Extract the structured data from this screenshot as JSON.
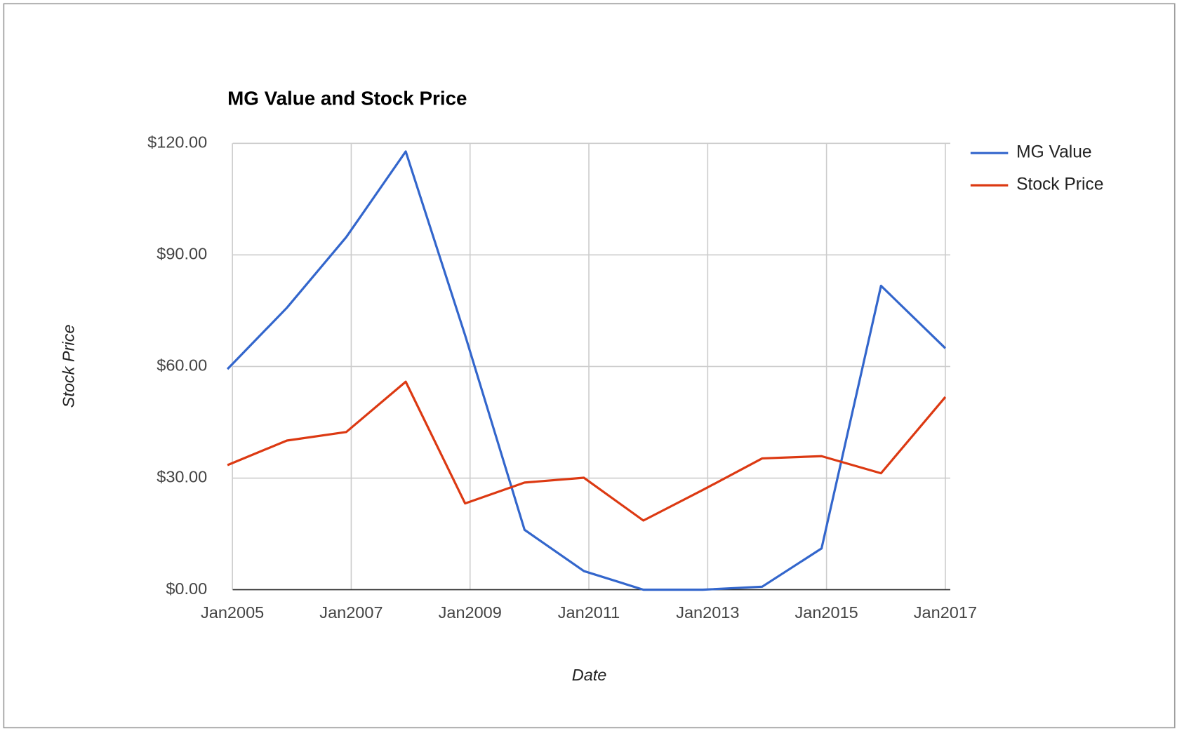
{
  "chart_data": {
    "type": "line",
    "title": "MG Value and Stock Price",
    "x_label": "Date",
    "y_label": "Stock Price",
    "x": [
      "2004-12",
      "2005-12",
      "2006-12",
      "2007-12",
      "2008-12",
      "2009-12",
      "2010-12",
      "2011-12",
      "2012-12",
      "2013-12",
      "2014-12",
      "2015-12",
      "2017-01"
    ],
    "series": [
      {
        "name": "MG Value",
        "color": "#3366cc",
        "values": [
          59.3,
          75.8,
          94.8,
          117.8,
          68.4,
          16.1,
          5.0,
          0,
          0,
          0.8,
          11.1,
          81.7,
          64.9
        ]
      },
      {
        "name": "Stock Price",
        "color": "#dc3912",
        "values": [
          33.5,
          40.1,
          42.4,
          55.9,
          23.2,
          28.8,
          30.1,
          18.6,
          26.8,
          35.3,
          35.9,
          31.3,
          51.8
        ]
      }
    ],
    "xlim": [
      "2004-12",
      "2017-02"
    ],
    "xticks": [
      {
        "value": "2005-01",
        "label": "Jan2005"
      },
      {
        "value": "2007-01",
        "label": "Jan2007"
      },
      {
        "value": "2009-01",
        "label": "Jan2009"
      },
      {
        "value": "2011-01",
        "label": "Jan2011"
      },
      {
        "value": "2013-01",
        "label": "Jan2013"
      },
      {
        "value": "2015-01",
        "label": "Jan2015"
      },
      {
        "value": "2017-01",
        "label": "Jan2017"
      }
    ],
    "ylim": [
      0,
      120
    ],
    "yticks": [
      {
        "value": 0,
        "label": "$0.00"
      },
      {
        "value": 30,
        "label": "$30.00"
      },
      {
        "value": 60,
        "label": "$60.00"
      },
      {
        "value": 90,
        "label": "$90.00"
      },
      {
        "value": 120,
        "label": "$120.00"
      }
    ],
    "grid": true,
    "legend": "right"
  }
}
